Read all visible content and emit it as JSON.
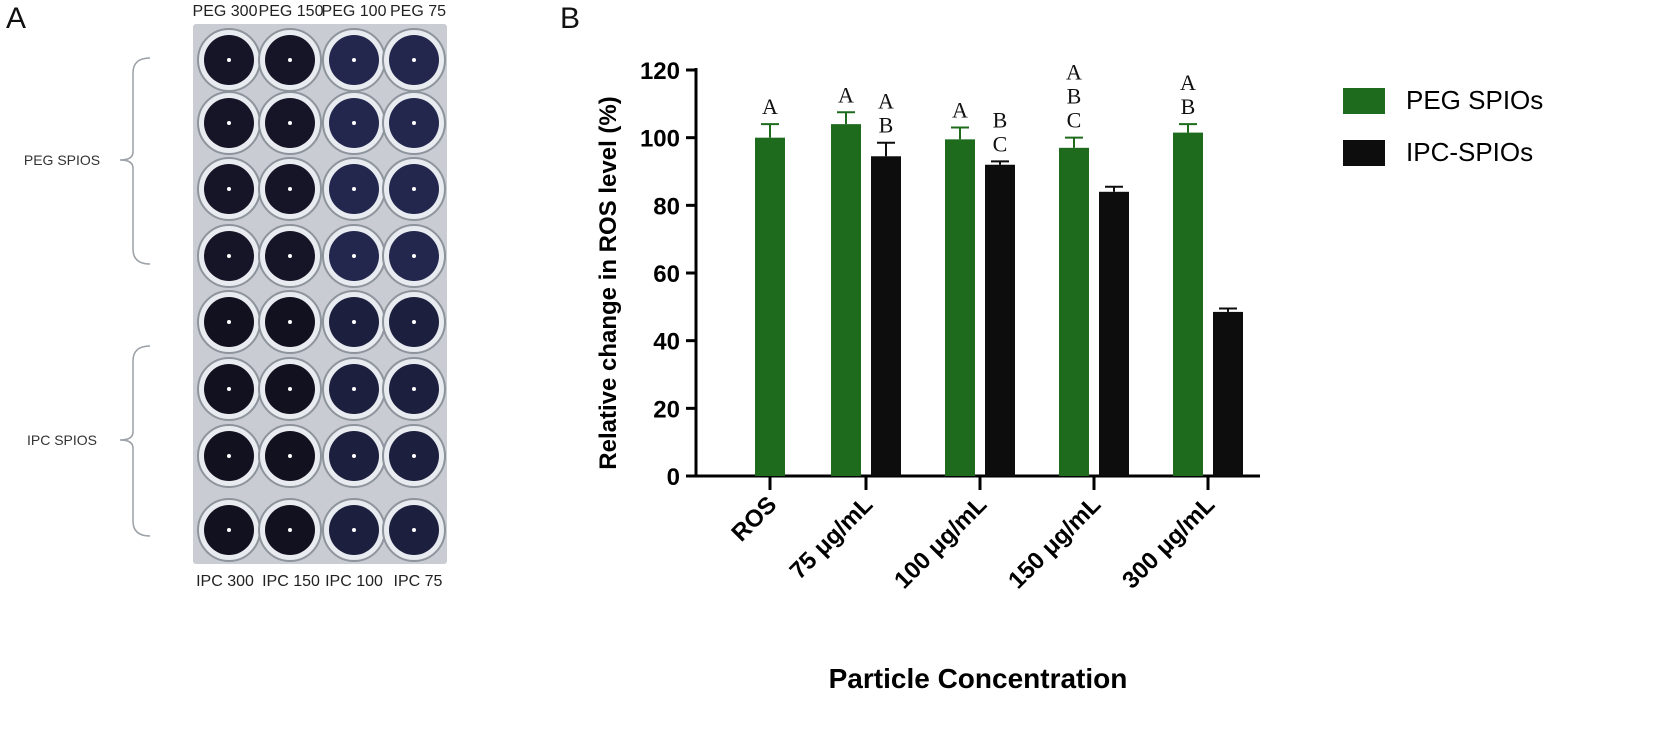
{
  "panel_a": {
    "label": "A",
    "column_labels_top": [
      "PEG 300",
      "PEG 150",
      "PEG 100",
      "PEG 75"
    ],
    "column_labels_bottom": [
      "IPC 300",
      "IPC 150",
      "IPC 100",
      "IPC 75"
    ],
    "group_labels": [
      "PEG SPIOS",
      "IPC SPIOS"
    ],
    "rows": 8,
    "columns": 4
  },
  "panel_b": {
    "label": "B"
  },
  "colors": {
    "peg": "#1f6b1e",
    "ipc": "#0d0d0d",
    "well_dark": "#15132a",
    "plate_bg": "#c9cdd3"
  },
  "chart_data": {
    "type": "bar",
    "categories": [
      "ROS",
      "75 μg/mL",
      "100 μg/mL",
      "150 μg/mL",
      "300 μg/mL"
    ],
    "series": [
      {
        "name": "PEG SPIOs",
        "values": [
          100,
          104,
          99.5,
          97,
          101.5
        ],
        "errors": [
          4,
          3.5,
          3.5,
          3,
          2.5
        ],
        "letters": [
          [
            "A"
          ],
          [
            "A"
          ],
          [
            "A"
          ],
          [
            "A",
            "B",
            "C"
          ],
          [
            "A",
            "B"
          ]
        ]
      },
      {
        "name": "IPC-SPIOs",
        "values": [
          null,
          94.5,
          92,
          84,
          48.5
        ],
        "errors": [
          null,
          4,
          1,
          1.5,
          1
        ],
        "letters": [
          [],
          [
            "A",
            "B"
          ],
          [
            "B",
            "C"
          ],
          [],
          []
        ]
      }
    ],
    "xlabel": "Particle Concentration",
    "ylabel": "Relative change in ROS level (%)",
    "ylim": [
      0,
      120
    ],
    "yticks": [
      "0",
      "20",
      "40",
      "60",
      "80",
      "100",
      "120"
    ],
    "legend_position": "right"
  }
}
